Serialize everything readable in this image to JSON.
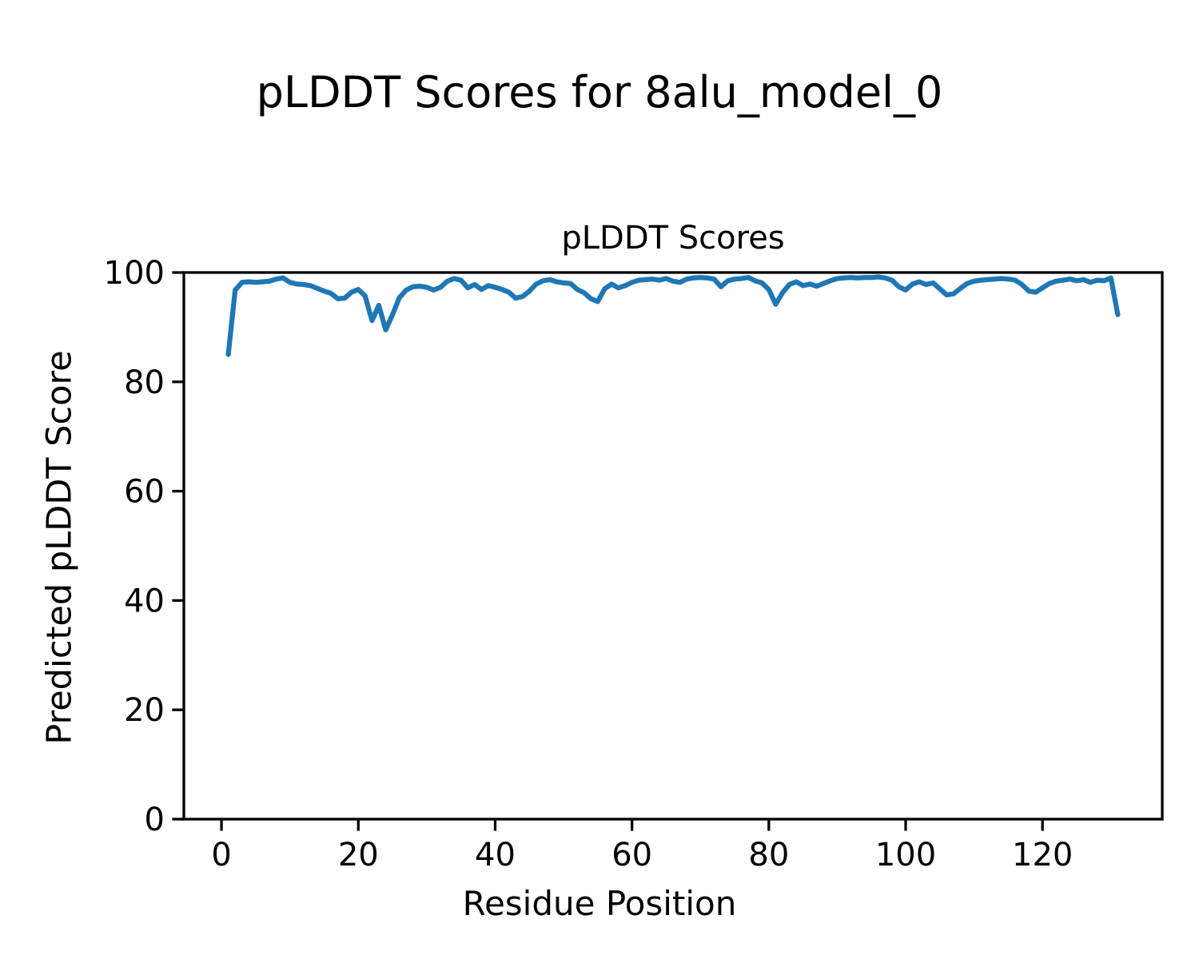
{
  "figure": {
    "suptitle": "pLDDT Scores for 8alu_model_0"
  },
  "chart_data": {
    "type": "line",
    "title": "pLDDT Scores",
    "xlabel": "Residue Position",
    "ylabel": "Predicted pLDDT Score",
    "xlim": [
      -5.5,
      137.5
    ],
    "ylim": [
      0,
      100
    ],
    "xticks": [
      0,
      20,
      40,
      60,
      80,
      100,
      120
    ],
    "yticks": [
      0,
      20,
      40,
      60,
      80,
      100
    ],
    "grid": false,
    "legend": null,
    "line_color": "#1f77b4",
    "axis_color": "#000000",
    "series": [
      {
        "name": "pLDDT",
        "x_first_residue": 1,
        "x_last_residue": 131,
        "values": [
          85.0,
          96.8,
          98.2,
          98.3,
          98.2,
          98.3,
          98.4,
          98.8,
          99.0,
          98.2,
          97.9,
          97.8,
          97.6,
          97.1,
          96.6,
          96.2,
          95.2,
          95.3,
          96.4,
          96.9,
          95.7,
          91.2,
          94.0,
          89.5,
          92.3,
          95.4,
          96.8,
          97.4,
          97.5,
          97.3,
          96.8,
          97.3,
          98.4,
          98.9,
          98.6,
          97.2,
          97.8,
          96.9,
          97.6,
          97.3,
          96.9,
          96.4,
          95.3,
          95.6,
          96.6,
          97.9,
          98.5,
          98.7,
          98.3,
          98.1,
          98.0,
          96.9,
          96.3,
          95.2,
          94.7,
          97.0,
          97.9,
          97.2,
          97.6,
          98.2,
          98.6,
          98.7,
          98.8,
          98.6,
          98.9,
          98.4,
          98.2,
          98.8,
          99.0,
          99.1,
          99.0,
          98.8,
          97.4,
          98.5,
          98.8,
          98.9,
          99.1,
          98.5,
          98.1,
          96.9,
          94.2,
          96.3,
          97.8,
          98.3,
          97.6,
          97.9,
          97.5,
          98.0,
          98.5,
          98.9,
          99.0,
          99.1,
          99.0,
          99.1,
          99.1,
          99.2,
          99.0,
          98.6,
          97.4,
          96.8,
          97.9,
          98.3,
          97.8,
          98.1,
          97.0,
          95.9,
          96.1,
          97.1,
          98.0,
          98.4,
          98.6,
          98.7,
          98.8,
          98.9,
          98.8,
          98.6,
          97.8,
          96.6,
          96.4,
          97.2,
          98.0,
          98.4,
          98.6,
          98.8,
          98.5,
          98.7,
          98.2,
          98.6,
          98.5,
          99.0,
          92.3
        ]
      }
    ]
  }
}
